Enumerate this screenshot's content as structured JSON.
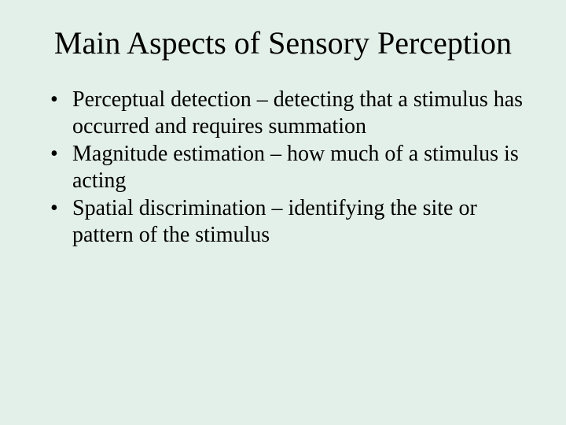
{
  "slide": {
    "background_color": "#e3efe9",
    "text_color": "#000000",
    "font_family": "Times New Roman",
    "title": {
      "text": "Main Aspects of Sensory Perception",
      "fontsize": 40,
      "align": "center"
    },
    "bullets": {
      "fontsize": 28,
      "items": [
        "Perceptual detection – detecting that a stimulus has occurred and requires summation",
        "Magnitude estimation – how much of a stimulus is acting",
        "Spatial discrimination – identifying the site or pattern of the stimulus"
      ]
    }
  }
}
